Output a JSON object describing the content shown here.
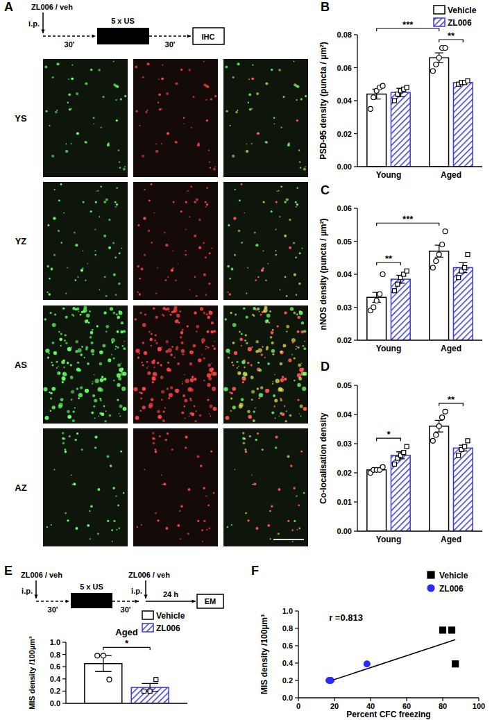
{
  "chart_data": [
    {
      "type": "bar",
      "label": "B",
      "ylabel": "PSD-95 density (puncta / µm²)",
      "categories": [
        "Young",
        "Aged"
      ],
      "series": [
        {
          "name": "Vehicle",
          "color": "#ffffff",
          "marker": "circle",
          "values": [
            0.044,
            0.066
          ],
          "errors": [
            0.003,
            0.003
          ],
          "points": [
            [
              0.035,
              0.042,
              0.046,
              0.048,
              0.049
            ],
            [
              0.058,
              0.062,
              0.066,
              0.072,
              0.072
            ]
          ]
        },
        {
          "name": "ZL006",
          "color": "#3a3acf",
          "marker": "square",
          "values": [
            0.045,
            0.051
          ],
          "errors": [
            0.0025,
            0.001
          ],
          "points": [
            [
              0.04,
              0.044,
              0.046,
              0.047,
              0.048
            ],
            [
              0.05,
              0.051,
              0.051,
              0.052
            ]
          ]
        }
      ],
      "ylim": [
        0,
        0.08
      ],
      "yticks": [
        {
          "value": 0,
          "label": "0.00"
        },
        0.02,
        0.04,
        0.06,
        0.08
      ],
      "legend": "top-right",
      "annotations": [
        {
          "text": "**",
          "from": [
            1,
            0
          ],
          "to": [
            1,
            1
          ]
        },
        {
          "text": "***",
          "from": [
            0,
            0
          ],
          "to": [
            1,
            0
          ]
        }
      ]
    },
    {
      "type": "bar",
      "label": "C",
      "ylabel": "nNOS density (puncta / µm²)",
      "categories": [
        "Young",
        "Aged"
      ],
      "series": [
        {
          "name": "Vehicle",
          "color": "#ffffff",
          "marker": "circle",
          "values": [
            0.033,
            0.047
          ],
          "errors": [
            0.0015,
            0.0018
          ],
          "points": [
            [
              0.029,
              0.03,
              0.032,
              0.034,
              0.04
            ],
            [
              0.042,
              0.044,
              0.046,
              0.049,
              0.053
            ]
          ]
        },
        {
          "name": "ZL006",
          "color": "#3a3acf",
          "marker": "square",
          "values": [
            0.0385,
            0.042
          ],
          "errors": [
            0.0012,
            0.0015
          ],
          "points": [
            [
              0.035,
              0.037,
              0.039,
              0.04,
              0.041
            ],
            [
              0.039,
              0.041,
              0.042,
              0.046
            ]
          ]
        }
      ],
      "ylim": [
        0.02,
        0.06
      ],
      "yticks": [
        0.02,
        0.03,
        0.04,
        0.05,
        0.06
      ],
      "annotations": [
        {
          "text": "**",
          "from": [
            0,
            0
          ],
          "to": [
            0,
            1
          ]
        },
        {
          "text": "***",
          "from": [
            0,
            0
          ],
          "to": [
            1,
            0
          ]
        }
      ]
    },
    {
      "type": "bar",
      "label": "D",
      "ylabel": "Co-localisation density",
      "categories": [
        "Young",
        "Aged"
      ],
      "series": [
        {
          "name": "Vehicle",
          "color": "#ffffff",
          "marker": "circle",
          "values": [
            0.021,
            0.036
          ],
          "errors": [
            0.0005,
            0.002
          ],
          "points": [
            [
              0.02,
              0.021,
              0.021,
              0.021,
              0.022
            ],
            [
              0.031,
              0.033,
              0.036,
              0.039,
              0.041
            ]
          ]
        },
        {
          "name": "ZL006",
          "color": "#3a3acf",
          "marker": "square",
          "values": [
            0.026,
            0.0285
          ],
          "errors": [
            0.0012,
            0.001
          ],
          "points": [
            [
              0.023,
              0.025,
              0.026,
              0.027,
              0.029
            ],
            [
              0.026,
              0.028,
              0.029,
              0.031
            ]
          ]
        }
      ],
      "ylim": [
        0,
        0.05
      ],
      "yticks": [
        {
          "value": 0,
          "label": "0.00"
        },
        0.01,
        0.02,
        0.03,
        0.04,
        0.05
      ],
      "annotations": [
        {
          "text": "*",
          "from": [
            0,
            0
          ],
          "to": [
            0,
            1
          ]
        },
        {
          "text": "**",
          "from": [
            1,
            0
          ],
          "to": [
            1,
            1
          ]
        }
      ]
    },
    {
      "type": "bar",
      "label": "E",
      "title": "Aged",
      "ylabel": "MIS density /100µm³",
      "categories": [
        null
      ],
      "series": [
        {
          "name": "Vehicle",
          "color": "#ffffff",
          "marker": "circle",
          "values": [
            0.65
          ],
          "errors": [
            0.13
          ],
          "points": [
            [
              0.78,
              0.78,
              0.39
            ]
          ]
        },
        {
          "name": "ZL006",
          "color": "#3a3acf",
          "marker": "square",
          "values": [
            0.26
          ],
          "errors": [
            0.065
          ],
          "points": [
            [
              0.2,
              0.2,
              0.39
            ]
          ]
        }
      ],
      "ylim": [
        0,
        1
      ],
      "yticks": [
        {
          "value": 0,
          "label": "0.0"
        },
        0.2,
        0.4,
        0.6,
        0.8,
        {
          "value": 1,
          "label": "1.0"
        }
      ],
      "legend": "top-right",
      "annotations": [
        {
          "text": "*",
          "from": [
            0,
            0
          ],
          "to": [
            0,
            1
          ]
        }
      ]
    },
    {
      "type": "scatter",
      "label": "F",
      "xlabel": "Percent CFC freezing",
      "ylabel": "MIS density /100µm³",
      "series": [
        {
          "name": "Vehicle",
          "color": "#000000",
          "marker": "square",
          "x": [
            80,
            85,
            87
          ],
          "values": [
            0.78,
            0.78,
            0.39
          ]
        },
        {
          "name": "ZL006",
          "color": "#2a2aff",
          "marker": "circle",
          "x": [
            17,
            18,
            38
          ],
          "values": [
            0.2,
            0.2,
            0.39
          ]
        }
      ],
      "fit_line": {
        "x": [
          17,
          87
        ],
        "y": [
          0.19,
          0.67
        ]
      },
      "annotations": [
        {
          "text": "r =0.813"
        }
      ],
      "xlim": [
        0,
        100
      ],
      "xticks": [
        0,
        20,
        40,
        60,
        80,
        100
      ],
      "ylim": [
        0,
        1
      ],
      "yticks": [
        {
          "value": 0,
          "label": "0.0"
        },
        0.2,
        0.4,
        0.6,
        0.8,
        {
          "value": 1,
          "label": "1.0"
        }
      ],
      "legend": "top-right"
    }
  ],
  "panel_A": {
    "label": "A",
    "schematic": {
      "injection": "ZL006 / veh",
      "route": "i.p.",
      "delay1": "30'",
      "stimulus": "5 x US",
      "delay2": "30'",
      "endpoint": "IHC"
    },
    "rows": [
      "YS",
      "YZ",
      "AS",
      "AZ"
    ]
  },
  "panel_E_schematic": {
    "injection": "ZL006 / veh",
    "route": "i.p.",
    "delay1": "30'",
    "stimulus": "5 x US",
    "delay2": "30'",
    "injection2": "ZL006 / veh",
    "route2": "i.p.",
    "delay3": "24 h",
    "endpoint": "EM"
  }
}
